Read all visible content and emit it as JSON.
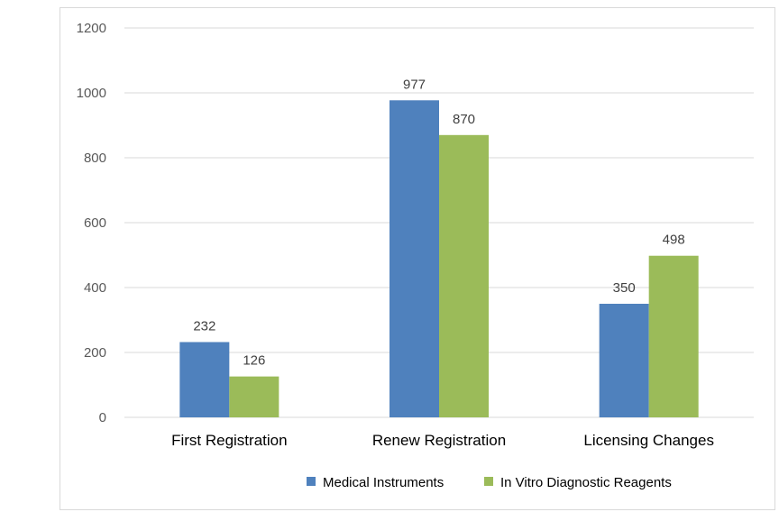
{
  "chart_data": {
    "type": "bar",
    "title": "",
    "xlabel": "",
    "ylabel": "",
    "categories": [
      "First Registration",
      "Renew Registration",
      "Licensing Changes"
    ],
    "series": [
      {
        "name": "Medical Instruments",
        "color": "#4f81bd",
        "values": [
          232,
          977,
          350
        ]
      },
      {
        "name": "In Vitro Diagnostic Reagents",
        "color": "#9bbb59",
        "values": [
          126,
          870,
          498
        ]
      }
    ],
    "ylim": [
      0,
      1200
    ],
    "yticks": [
      0,
      200,
      400,
      600,
      800,
      1000,
      1200
    ],
    "grid": true,
    "legend_position": "bottom"
  }
}
